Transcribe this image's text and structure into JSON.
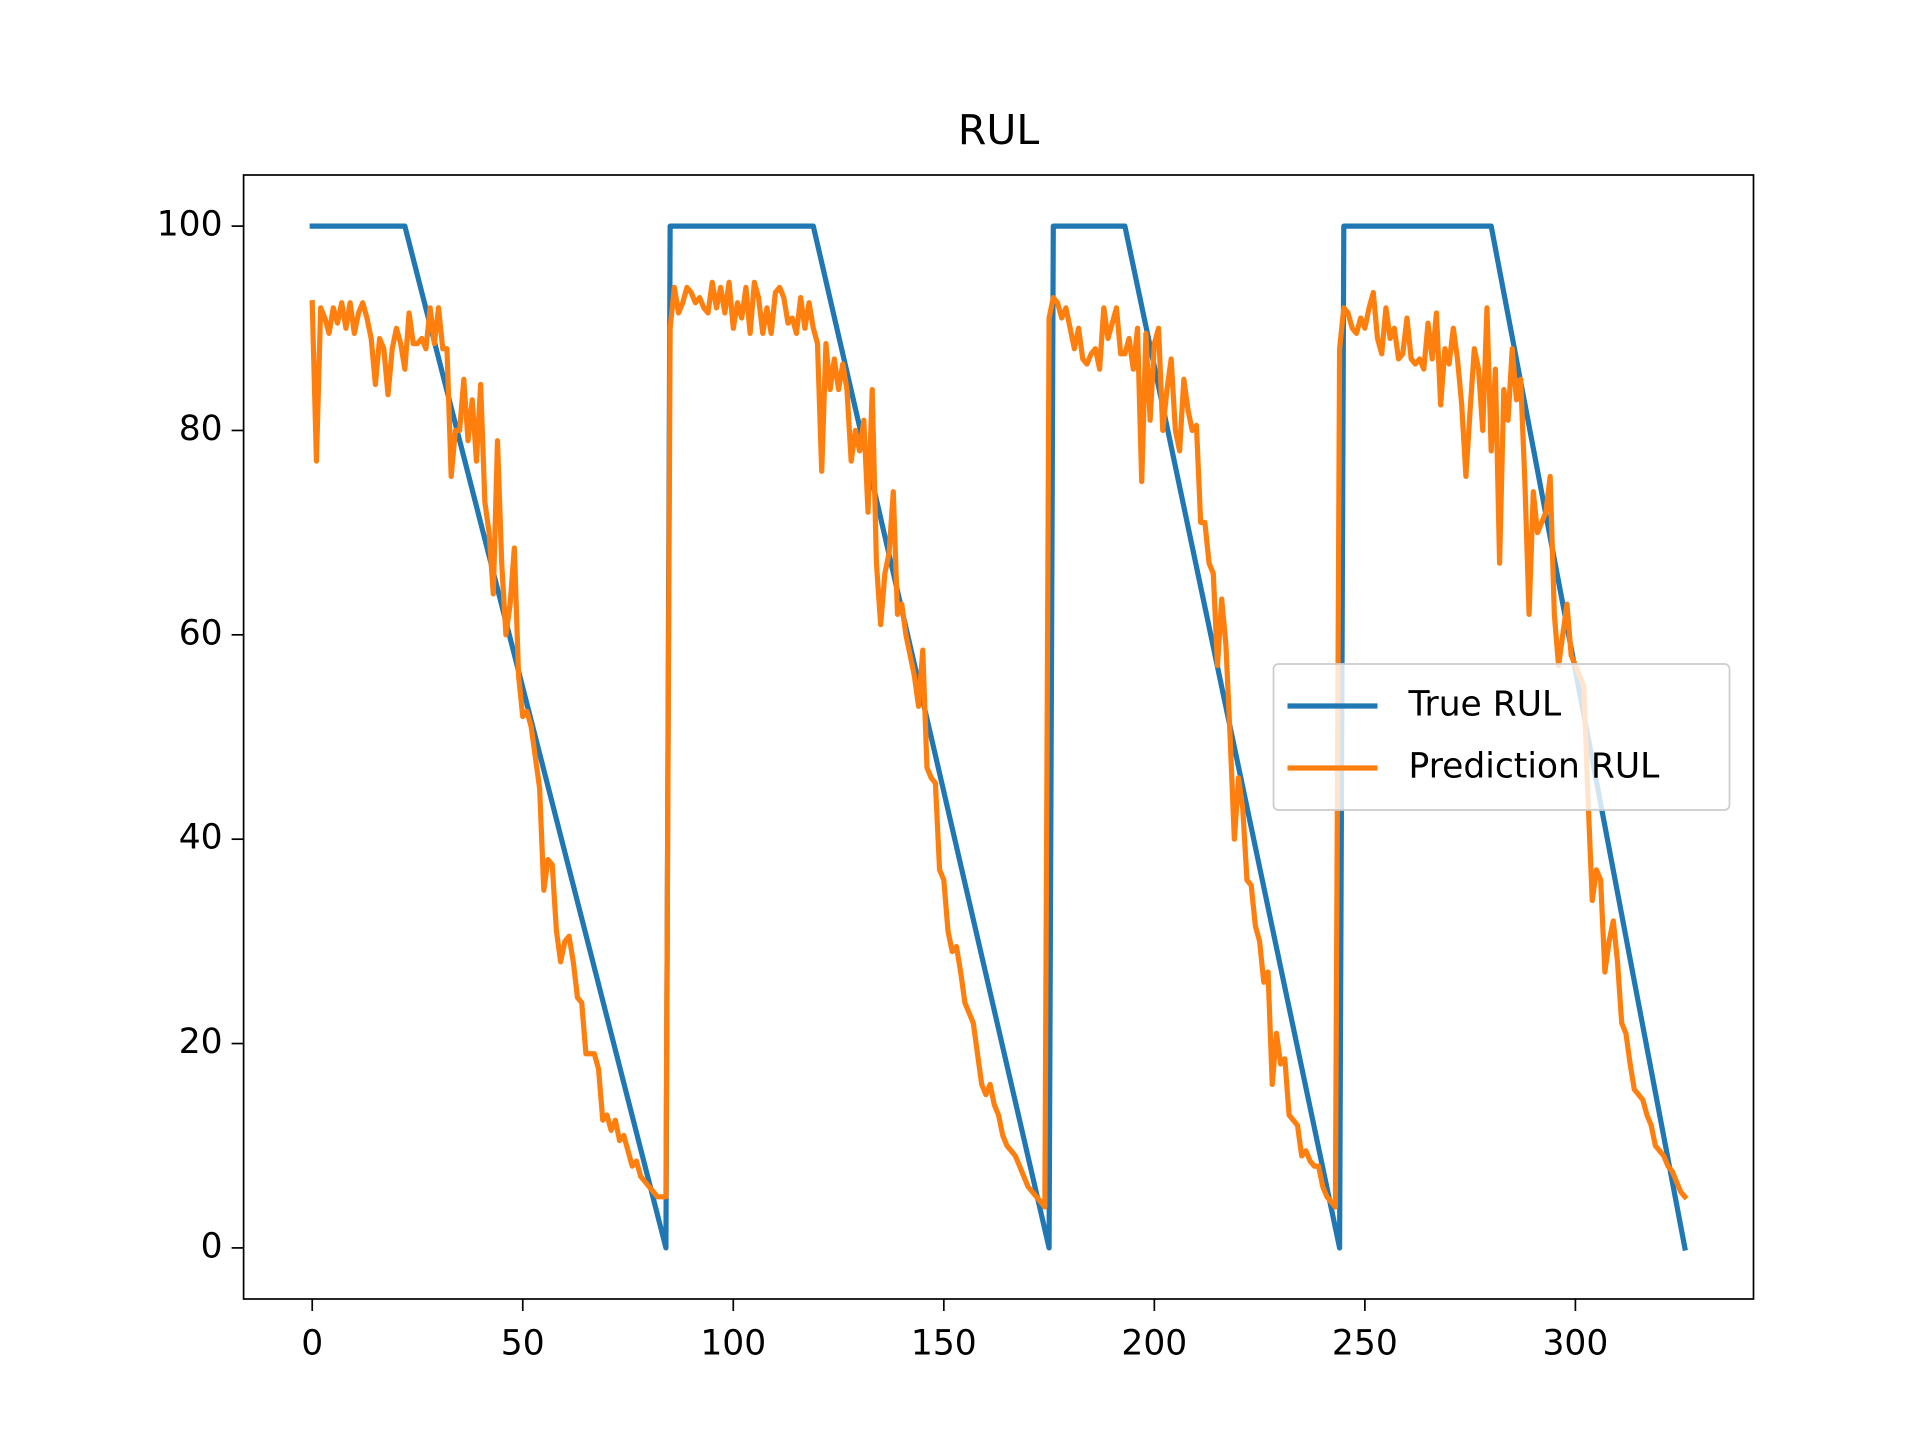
{
  "chart_data": {
    "type": "line",
    "title": "RUL",
    "xlim": [
      -16.3,
      342.3
    ],
    "xticks": [
      0,
      50,
      100,
      150,
      200,
      250,
      300
    ],
    "ylim": [
      -5,
      105
    ],
    "yticks": [
      0,
      20,
      40,
      60,
      80,
      100
    ],
    "legend": "center right",
    "series": [
      {
        "name": "True RUL",
        "color": "#1f77b4",
        "x": [
          0,
          22,
          84,
          85,
          119,
          175,
          176,
          193,
          244,
          245,
          280,
          326
        ],
        "values": [
          100,
          100,
          0,
          100,
          100,
          0,
          100,
          100,
          0,
          100,
          100,
          0
        ]
      },
      {
        "name": "Prediction RUL",
        "color": "#ff7f0e",
        "x": [
          0,
          1,
          2,
          3,
          4,
          5,
          6,
          7,
          8,
          9,
          10,
          11,
          12,
          13,
          14,
          15,
          16,
          17,
          18,
          19,
          20,
          21,
          22,
          23,
          24,
          25,
          26,
          27,
          28,
          29,
          30,
          31,
          32,
          33,
          34,
          35,
          36,
          37,
          38,
          39,
          40,
          41,
          42,
          43,
          44,
          45,
          46,
          47,
          48,
          49,
          50,
          51,
          52,
          53,
          54,
          55,
          56,
          57,
          58,
          59,
          60,
          61,
          62,
          63,
          64,
          65,
          66,
          67,
          68,
          69,
          70,
          71,
          72,
          73,
          74,
          75,
          76,
          77,
          78,
          79,
          80,
          81,
          82,
          83,
          84,
          85,
          86,
          87,
          88,
          89,
          90,
          91,
          92,
          93,
          94,
          95,
          96,
          97,
          98,
          99,
          100,
          101,
          102,
          103,
          104,
          105,
          106,
          107,
          108,
          109,
          110,
          111,
          112,
          113,
          114,
          115,
          116,
          117,
          118,
          119,
          120,
          121,
          122,
          123,
          124,
          125,
          126,
          127,
          128,
          129,
          130,
          131,
          132,
          133,
          134,
          135,
          136,
          137,
          138,
          139,
          140,
          141,
          142,
          143,
          144,
          145,
          146,
          147,
          148,
          149,
          150,
          151,
          152,
          153,
          154,
          155,
          156,
          157,
          158,
          159,
          160,
          161,
          162,
          163,
          164,
          165,
          166,
          167,
          168,
          169,
          170,
          171,
          172,
          173,
          174,
          175,
          176,
          177,
          178,
          179,
          180,
          181,
          182,
          183,
          184,
          185,
          186,
          187,
          188,
          189,
          190,
          191,
          192,
          193,
          194,
          195,
          196,
          197,
          198,
          199,
          200,
          201,
          202,
          203,
          204,
          205,
          206,
          207,
          208,
          209,
          210,
          211,
          212,
          213,
          214,
          215,
          216,
          217,
          218,
          219,
          220,
          221,
          222,
          223,
          224,
          225,
          226,
          227,
          228,
          229,
          230,
          231,
          232,
          233,
          234,
          235,
          236,
          237,
          238,
          239,
          240,
          241,
          242,
          243,
          244,
          245,
          246,
          247,
          248,
          249,
          250,
          251,
          252,
          253,
          254,
          255,
          256,
          257,
          258,
          259,
          260,
          261,
          262,
          263,
          264,
          265,
          266,
          267,
          268,
          269,
          270,
          271,
          272,
          273,
          274,
          275,
          276,
          277,
          278,
          279,
          280,
          281,
          282,
          283,
          284,
          285,
          286,
          287,
          288,
          289,
          290,
          291,
          292,
          293,
          294,
          295,
          296,
          297,
          298,
          299,
          300,
          301,
          302,
          303,
          304,
          305,
          306,
          307,
          308,
          309,
          310,
          311,
          312,
          313,
          314,
          315,
          316,
          317,
          318,
          319,
          320,
          321,
          322,
          323,
          324,
          325,
          326
        ],
        "values": [
          92.5,
          77,
          92,
          91,
          89.5,
          92,
          90.5,
          92.5,
          90,
          92.5,
          89.5,
          91.5,
          92.5,
          91,
          89,
          84.5,
          89,
          88,
          83.5,
          88,
          90,
          88.5,
          86,
          91.5,
          88.5,
          88.5,
          89,
          88,
          92,
          88.5,
          92,
          88,
          88,
          75.5,
          80,
          80,
          85,
          79,
          83,
          77,
          84.5,
          73,
          70,
          64,
          79,
          67,
          60,
          63,
          68.5,
          56,
          52,
          52.5,
          51,
          48,
          45,
          35,
          38,
          37.5,
          31,
          28,
          30,
          30.5,
          28,
          24.5,
          24,
          19,
          19,
          19,
          17.5,
          12.5,
          13,
          11.5,
          12.5,
          10.5,
          11,
          9.5,
          8,
          8.5,
          7,
          6.5,
          6,
          5.5,
          5,
          5,
          5,
          90,
          94,
          91.5,
          92.5,
          94,
          93.5,
          92.5,
          93,
          92,
          91.5,
          94.5,
          92,
          94,
          91.5,
          94.5,
          90,
          92.5,
          91,
          94,
          89.5,
          94.5,
          93,
          89.5,
          92,
          89.5,
          93.5,
          94,
          93,
          90.5,
          91,
          89.5,
          93,
          90,
          92.5,
          90,
          88.5,
          76,
          88.5,
          84,
          87,
          84,
          86.5,
          84,
          77,
          80,
          78,
          81,
          72,
          84,
          67,
          61,
          66,
          68,
          74,
          62,
          63,
          60,
          58,
          56,
          53,
          58.5,
          47,
          46,
          45.5,
          37,
          36,
          31,
          29,
          29.5,
          27,
          24,
          23,
          22,
          19,
          16,
          15,
          16,
          14,
          13,
          11,
          10,
          9.5,
          9,
          8,
          7,
          6,
          5.5,
          5,
          4.5,
          4,
          91,
          93,
          92.5,
          91,
          92,
          90,
          88,
          90,
          87,
          86.5,
          87.5,
          88,
          86,
          92,
          89,
          90.5,
          92,
          87.5,
          87.5,
          89,
          86,
          90,
          75,
          89.5,
          81,
          88.5,
          90,
          80,
          84,
          87,
          80,
          78,
          85,
          82,
          80,
          80.5,
          71,
          71,
          67,
          66,
          57,
          63.5,
          59,
          50,
          40,
          46,
          43,
          36,
          35.5,
          31.5,
          30,
          26,
          27,
          16,
          21,
          18,
          18.5,
          13,
          12.5,
          12,
          9,
          9.5,
          8.5,
          8,
          8,
          6,
          5,
          4.5,
          4,
          88,
          92,
          91.5,
          90,
          89.5,
          91,
          90,
          92,
          93.5,
          89,
          87.5,
          92,
          89,
          90,
          87,
          87.5,
          91,
          87,
          86.5,
          87,
          86,
          90.5,
          87,
          91.5,
          82.5,
          88,
          86.5,
          90,
          87,
          82.5,
          75.5,
          82,
          88,
          86,
          80,
          92,
          78,
          86,
          67,
          84,
          81,
          88,
          83,
          85,
          75,
          62,
          74,
          70,
          71,
          72,
          75.5,
          62,
          57,
          60,
          63,
          58,
          57,
          56,
          55,
          44,
          34,
          37,
          36,
          27,
          30,
          32,
          28,
          22,
          21,
          18,
          15.5,
          15,
          14.5,
          13,
          12,
          10,
          9.5,
          9,
          8,
          7.5,
          6.5,
          5.5,
          5
        ]
      }
    ]
  }
}
